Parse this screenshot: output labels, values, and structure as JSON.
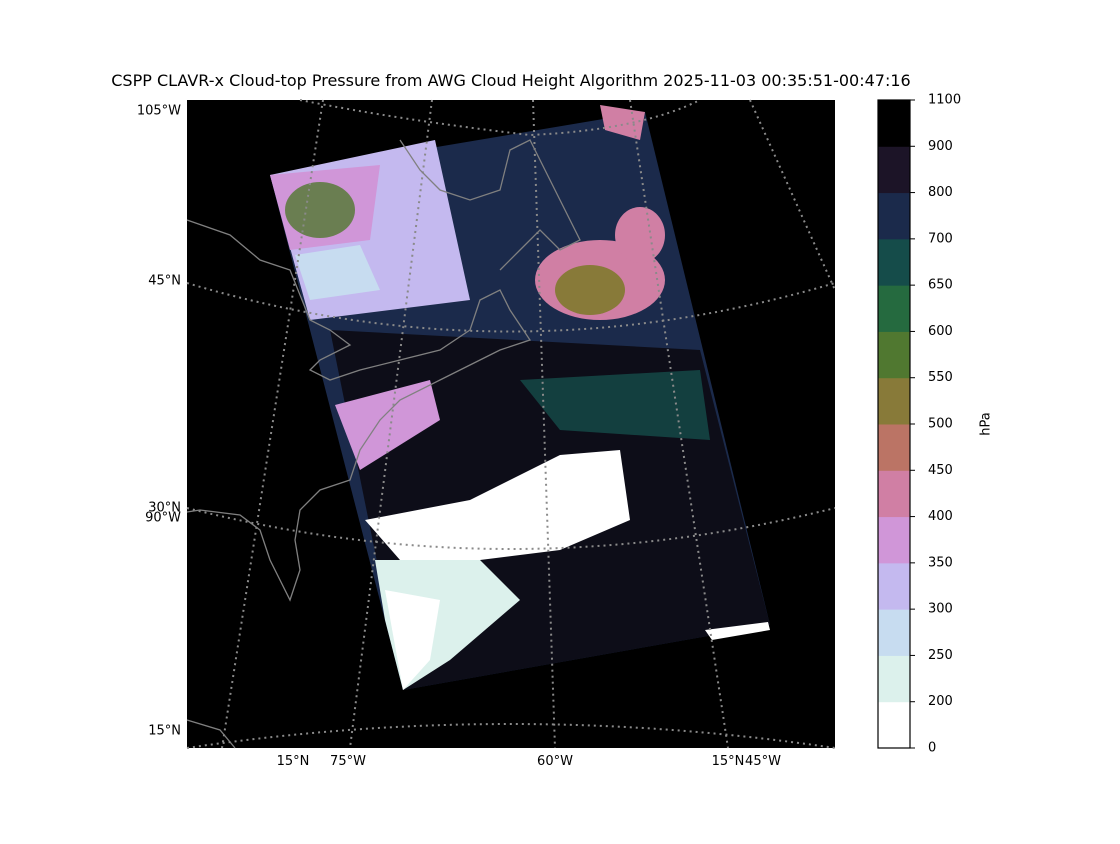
{
  "title": "CSPP CLAVR-x Cloud-top Pressure from AWG Cloud Height Algorithm 2025-11-03 00:35:51-00:47:16",
  "map": {
    "left_labels": [
      "105°W",
      "45°N",
      "30°N",
      "90°W",
      "15°N"
    ],
    "bottom_labels": [
      "15°N",
      "75°W",
      "60°W",
      "15°N",
      "45°W"
    ]
  },
  "colorbar": {
    "label": "hPa",
    "ticks": [
      0,
      200,
      250,
      300,
      350,
      400,
      450,
      500,
      550,
      600,
      650,
      700,
      800,
      900,
      1100
    ],
    "colors": [
      "#ffffff",
      "#dcf1ec",
      "#c7dcf0",
      "#c4b9ef",
      "#d096d8",
      "#d07fa4",
      "#bb7465",
      "#887a39",
      "#507830",
      "#256a3f",
      "#154c4a",
      "#1b2a4b",
      "#1c1427",
      "#000000"
    ]
  }
}
